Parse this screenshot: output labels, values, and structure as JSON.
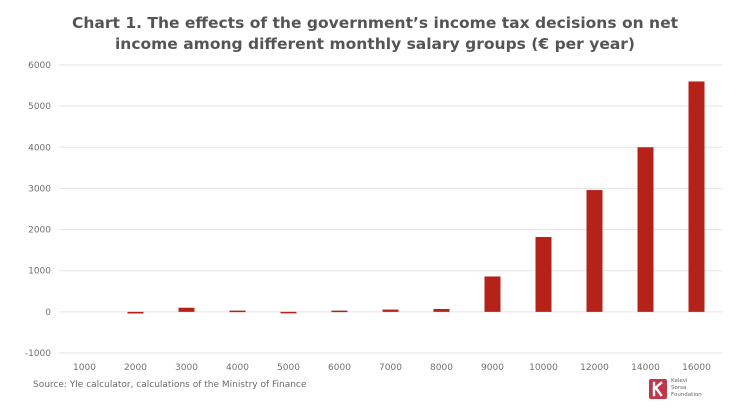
{
  "chart_data": {
    "type": "bar",
    "title": [
      "Chart 1. The effects of the government’s income tax decisions on net",
      "income among different monthly salary groups (€ per year)"
    ],
    "categories": [
      "1000",
      "2000",
      "3000",
      "4000",
      "5000",
      "6000",
      "7000",
      "8000",
      "9000",
      "10000",
      "12000",
      "14000",
      "16000"
    ],
    "values": [
      0,
      -40,
      100,
      30,
      -15,
      30,
      55,
      70,
      860,
      1820,
      2960,
      4000,
      5600
    ],
    "ylim": [
      -1000,
      6000
    ],
    "yticks": [
      "-1000",
      "0",
      "1000",
      "2000",
      "3000",
      "4000",
      "5000",
      "6000"
    ],
    "xlabel": "",
    "ylabel": "",
    "grid": true,
    "bar_color": "#b5221a"
  },
  "source": "Source: Yle calculator, calculations of the Ministry of Finance",
  "logo": {
    "lines": [
      "Kalevi",
      "Sorsa",
      "Foundation"
    ],
    "icon": "sorsa-foundation-logo-icon",
    "color": "#c0354a"
  }
}
